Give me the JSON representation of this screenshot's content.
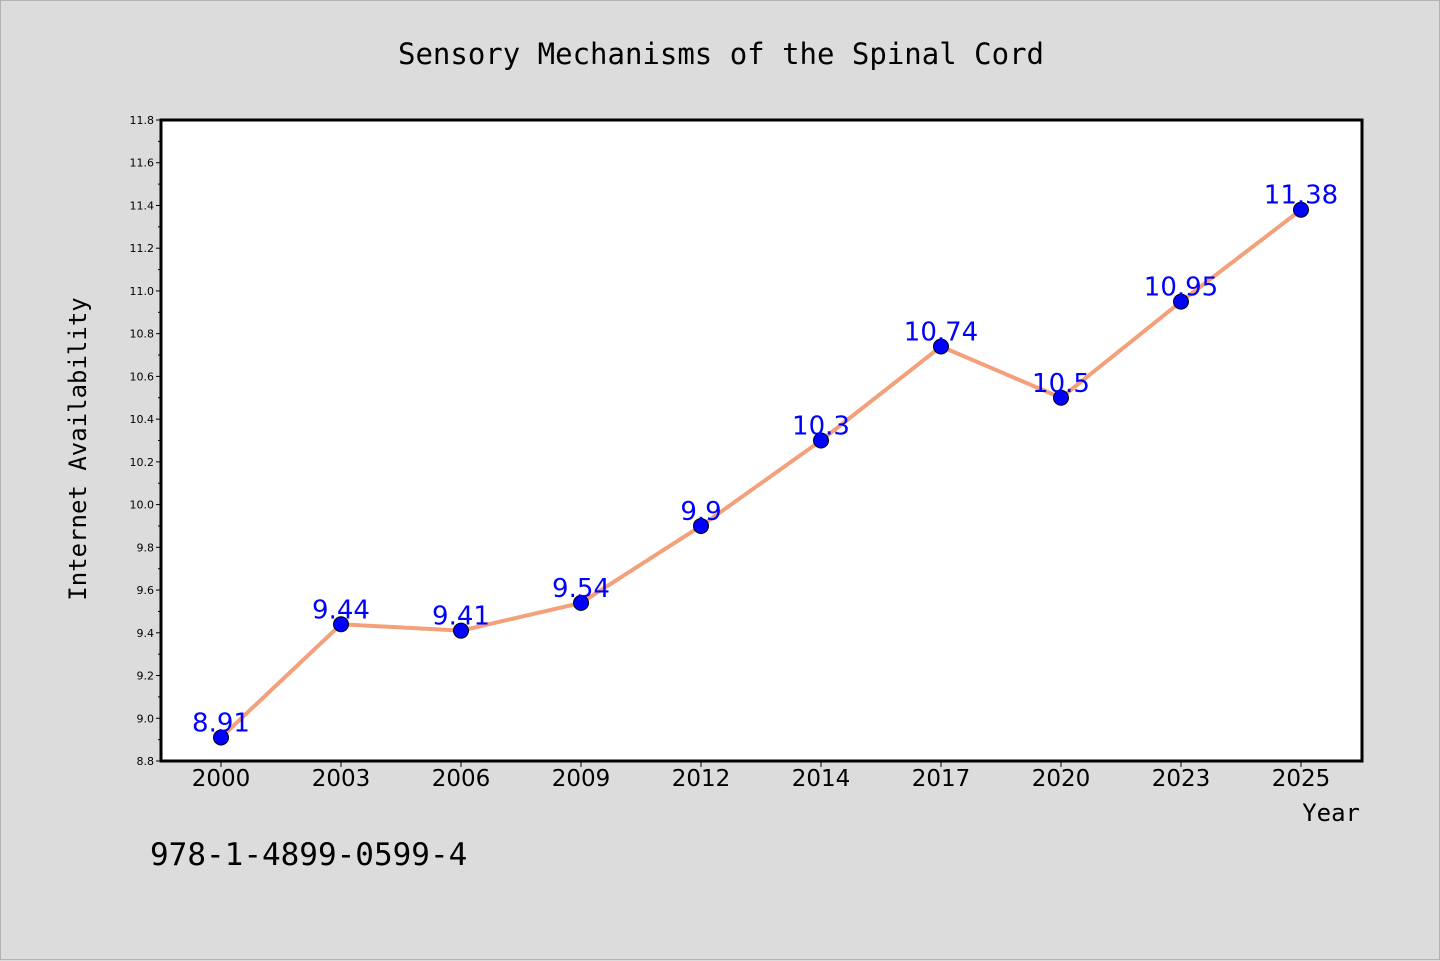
{
  "chart_data": {
    "type": "line",
    "title": "Sensory Mechanisms of the Spinal Cord",
    "xlabel": "Year",
    "ylabel": "Internet Availability",
    "categories": [
      "2000",
      "2003",
      "2006",
      "2009",
      "2012",
      "2014",
      "2017",
      "2020",
      "2023",
      "2025"
    ],
    "series": [
      {
        "values": [
          8.91,
          9.44,
          9.41,
          9.54,
          9.9,
          10.3,
          10.74,
          10.5,
          10.95,
          11.38
        ]
      }
    ],
    "data_labels": [
      "8.91",
      "9.44",
      "9.41",
      "9.54",
      "9.9",
      "10.3",
      "10.74",
      "10.5",
      "10.95",
      "11.38"
    ],
    "ylim": [
      8.8,
      11.8
    ],
    "yticks": [
      "8.8",
      "9.0",
      "9.2",
      "9.4",
      "9.6",
      "9.8",
      "10.0",
      "10.2",
      "10.4",
      "10.6",
      "10.8",
      "11.0",
      "11.2",
      "11.4",
      "11.6",
      "11.8"
    ],
    "grid": false,
    "legend": "none",
    "line_color": "#f4a07a",
    "marker_color": "#0000ff",
    "label_color": "#0000ff",
    "plot_background": "#ffffff",
    "figure_background": "#dcdcdc"
  },
  "annotation": "978-1-4899-0599-4"
}
